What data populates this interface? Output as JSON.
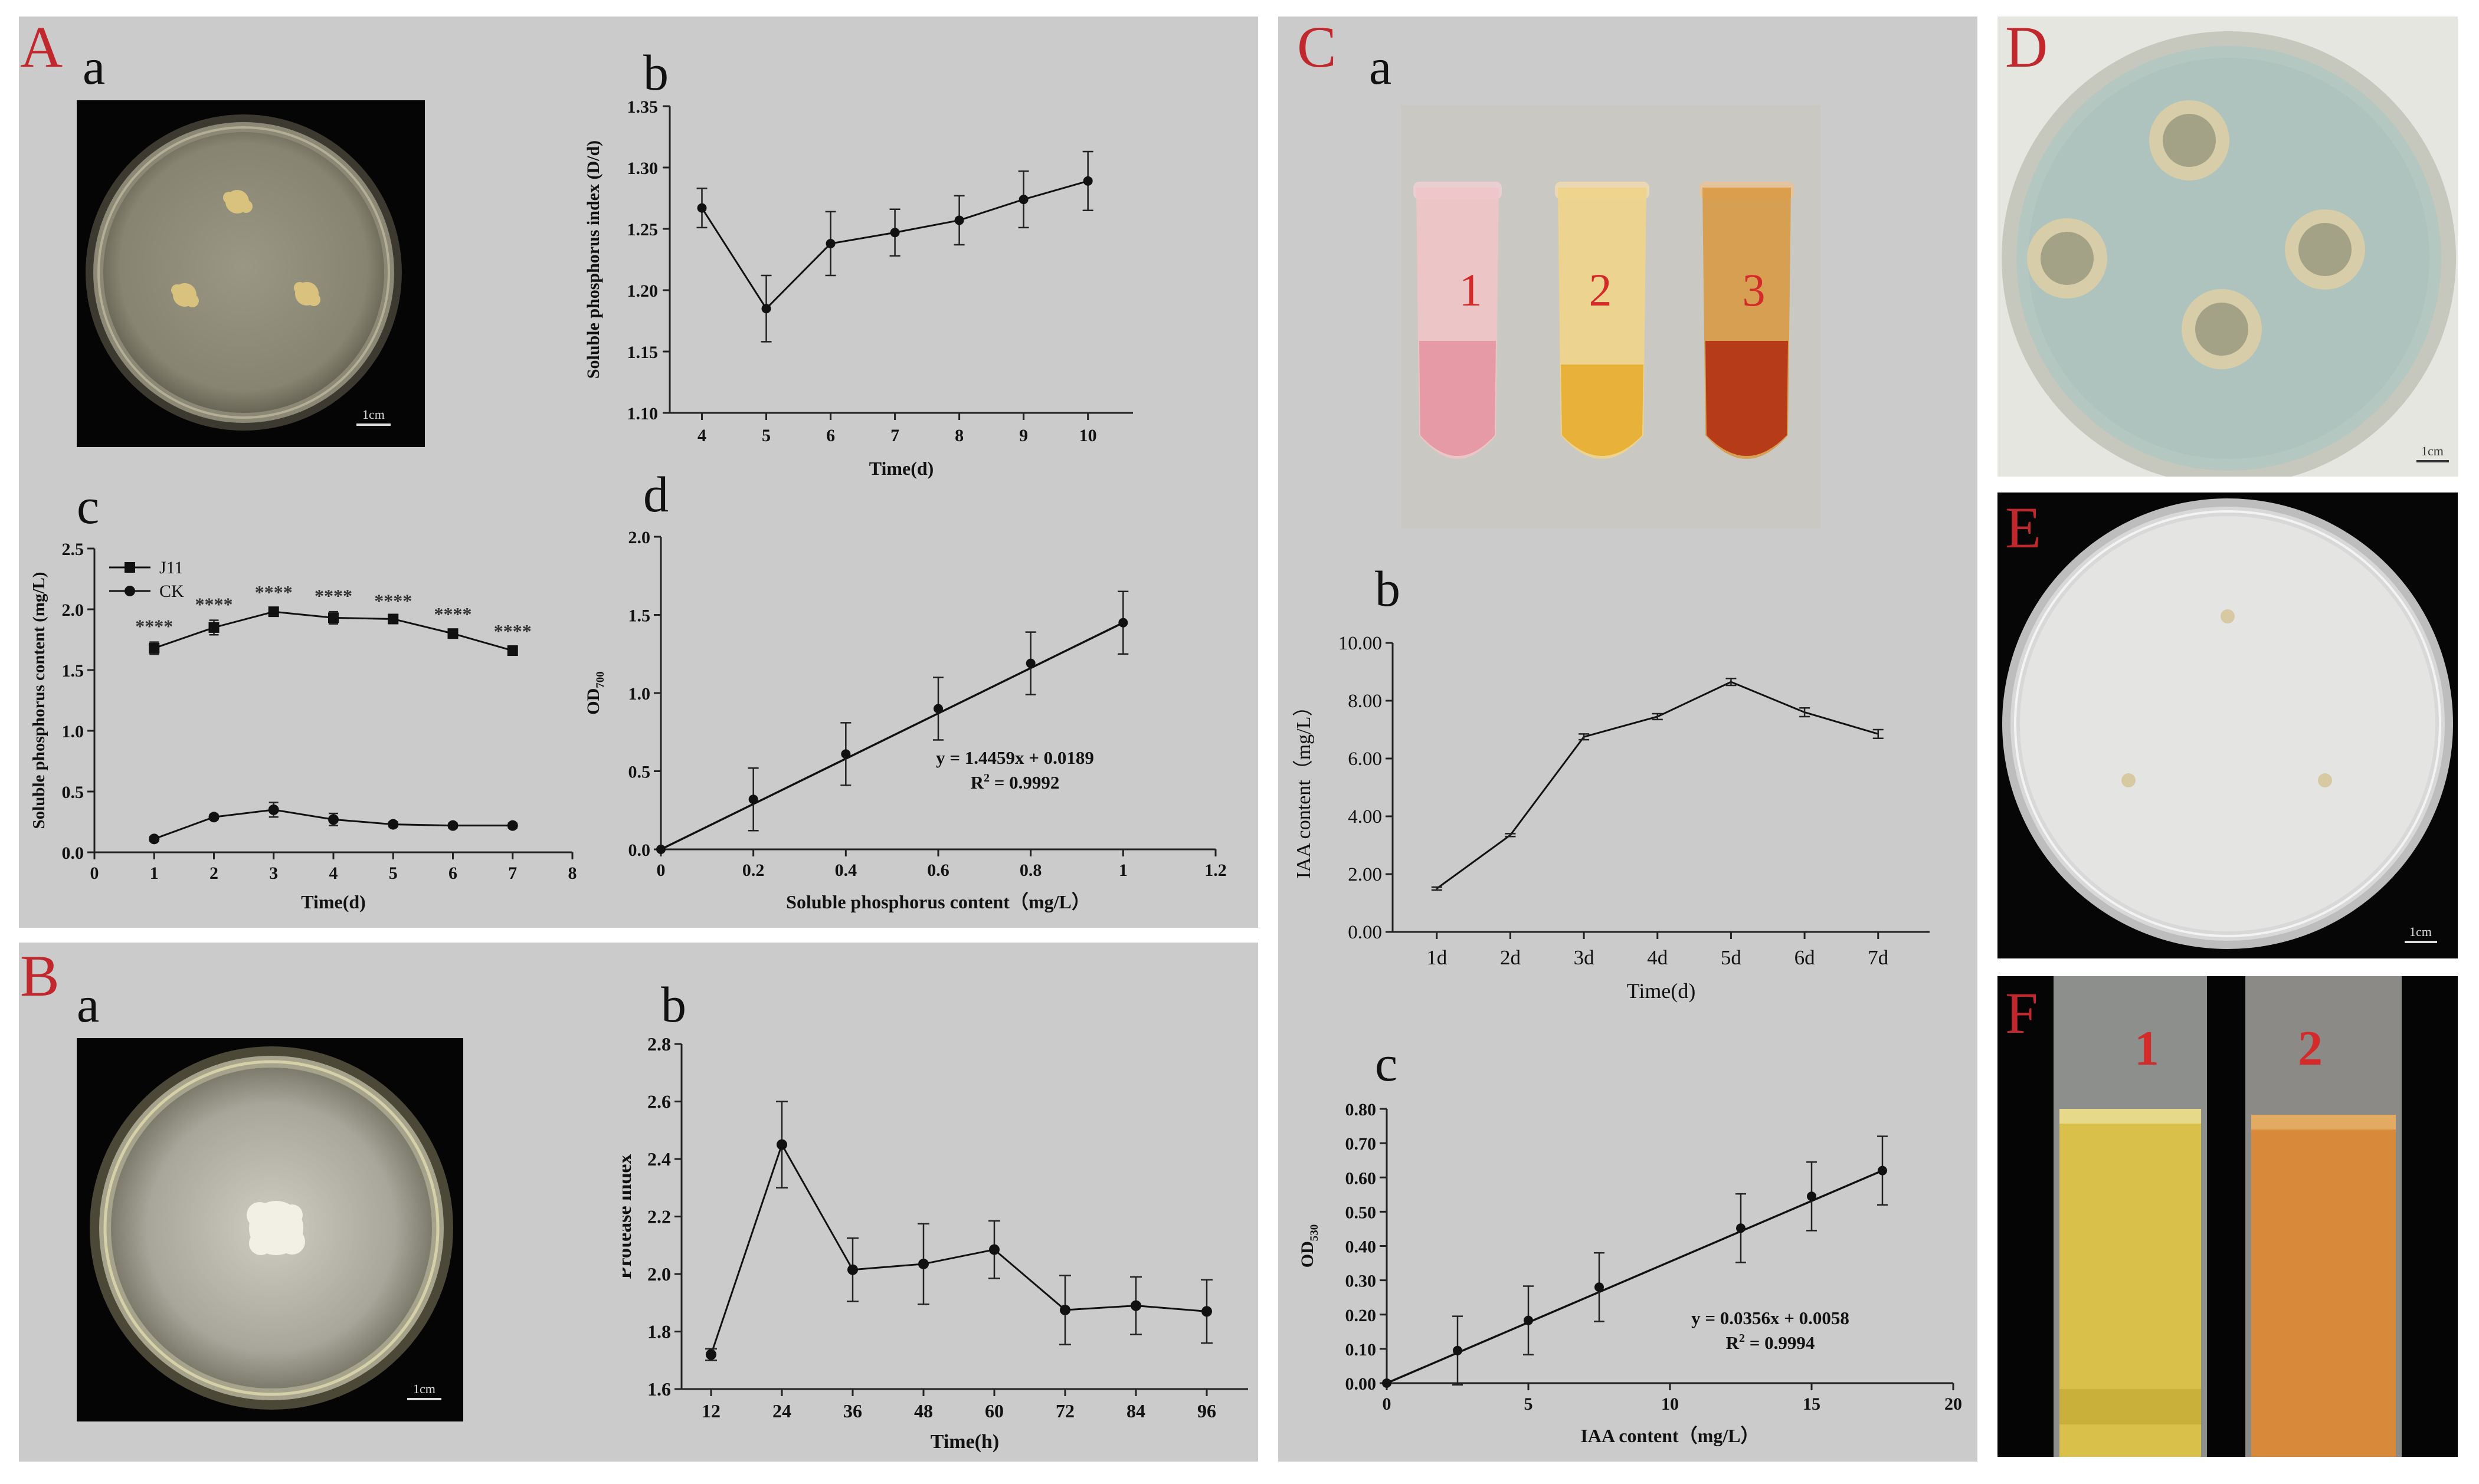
{
  "panel_labels": {
    "A": "A",
    "B": "B",
    "C": "C",
    "D": "D",
    "E": "E",
    "F": "F"
  },
  "sub_labels": {
    "Aa": "a",
    "Ab": "b",
    "Ac": "c",
    "Ad": "d",
    "Ba": "a",
    "Bb": "b",
    "Ca": "a",
    "Cb": "b",
    "Cc": "c"
  },
  "scale_bar": "1cm",
  "tube_labels": [
    "1",
    "2",
    "3"
  ],
  "tube_labels_F": [
    "1",
    "2"
  ],
  "colors": {
    "panel_bg": "#cbcbcb",
    "label_red": "#c0282d",
    "tube_label": "#d42a2a"
  },
  "chart_data": [
    {
      "id": "Ab",
      "type": "line",
      "x": [
        4,
        5,
        6,
        7,
        8,
        9,
        10
      ],
      "values": [
        1.267,
        1.185,
        1.238,
        1.247,
        1.257,
        1.274,
        1.289
      ],
      "errors": [
        0.016,
        0.027,
        0.026,
        0.019,
        0.02,
        0.023,
        0.024
      ],
      "xlim": [
        3.5,
        10.7
      ],
      "ylim": [
        1.1,
        1.35
      ],
      "xticks": [
        4,
        5,
        6,
        7,
        8,
        9,
        10
      ],
      "yticks": [
        "1.10",
        "1.15",
        "1.20",
        "1.25",
        "1.30",
        "1.35"
      ],
      "xlabel": "Time(d)",
      "ylabel": "Soluble phosphorus index (D/d)"
    },
    {
      "id": "Ac",
      "type": "line",
      "series": [
        {
          "name": "J11",
          "marker": "square",
          "x": [
            1,
            2,
            3,
            4,
            5,
            6,
            7
          ],
          "values": [
            1.68,
            1.85,
            1.98,
            1.93,
            1.92,
            1.8,
            1.66
          ],
          "errors": [
            0.05,
            0.06,
            0.03,
            0.05,
            0.02,
            0.03,
            0.03
          ]
        },
        {
          "name": "CK",
          "marker": "circle",
          "x": [
            1,
            2,
            3,
            4,
            5,
            6,
            7
          ],
          "values": [
            0.11,
            0.29,
            0.35,
            0.27,
            0.23,
            0.22,
            0.22
          ],
          "errors": [
            0.02,
            0.02,
            0.06,
            0.05,
            0.02,
            0.02,
            0.02
          ]
        }
      ],
      "annotations": [
        "****",
        "****",
        "****",
        "****",
        "****",
        "****",
        "****"
      ],
      "xlim": [
        0,
        8
      ],
      "ylim": [
        0,
        2.5
      ],
      "xticks": [
        "0",
        "1",
        "2",
        "3",
        "4",
        "5",
        "6",
        "7",
        "8"
      ],
      "yticks": [
        "0.0",
        "0.5",
        "1.0",
        "1.5",
        "2.0",
        "2.5"
      ],
      "xlabel": "Time(d)",
      "ylabel": "Soluble phosphorus content (mg/L)",
      "legend_position": "top-left"
    },
    {
      "id": "Ad",
      "type": "scatter",
      "x": [
        0,
        0.2,
        0.4,
        0.6,
        0.8,
        1.0
      ],
      "values": [
        0,
        0.32,
        0.61,
        0.9,
        1.19,
        1.45
      ],
      "errors": [
        0,
        0.2,
        0.2,
        0.2,
        0.2,
        0.2
      ],
      "xlim": [
        0,
        1.2
      ],
      "ylim": [
        0,
        2.0
      ],
      "xticks": [
        "0",
        "0.2",
        "0.4",
        "0.6",
        "0.8",
        "1",
        "1.2"
      ],
      "yticks": [
        "0.0",
        "0.5",
        "1.0",
        "1.5",
        "2.0"
      ],
      "xlabel": "Soluble phosphorus content（mg/L）",
      "ylabel_main": "OD",
      "ylabel_sub": "700",
      "equation": "y = 1.4459x + 0.0189",
      "r2_main": "R",
      "r2_sup": "2",
      "r2_rest": " = 0.9992"
    },
    {
      "id": "Bb",
      "type": "line",
      "x": [
        12,
        24,
        36,
        48,
        60,
        72,
        84,
        96
      ],
      "values": [
        1.72,
        2.45,
        2.015,
        2.035,
        2.085,
        1.875,
        1.89,
        1.87
      ],
      "errors": [
        0.02,
        0.15,
        0.11,
        0.14,
        0.1,
        0.12,
        0.1,
        0.11
      ],
      "xlim": [
        7,
        103
      ],
      "ylim": [
        1.6,
        2.8
      ],
      "xticks": [
        "12",
        "24",
        "36",
        "48",
        "60",
        "72",
        "84",
        "96"
      ],
      "yticks": [
        "1.6",
        "1.8",
        "2.0",
        "2.2",
        "2.4",
        "2.6",
        "2.8"
      ],
      "xlabel": "Time(h)",
      "ylabel": "Protease index"
    },
    {
      "id": "Cb",
      "type": "line",
      "categories": [
        "1d",
        "2d",
        "3d",
        "4d",
        "5d",
        "6d",
        "7d"
      ],
      "values": [
        1.5,
        3.35,
        6.75,
        7.45,
        8.65,
        7.6,
        6.85
      ],
      "errors": [
        0.05,
        0.05,
        0.1,
        0.1,
        0.12,
        0.15,
        0.15
      ],
      "ylim": [
        0,
        10
      ],
      "yticks": [
        "0.00",
        "2.00",
        "4.00",
        "6.00",
        "8.00",
        "10.00"
      ],
      "xlabel": "Time(d)",
      "ylabel": "IAA content（mg/L）"
    },
    {
      "id": "Cc",
      "type": "scatter",
      "x": [
        0,
        2.5,
        5,
        7.5,
        12.5,
        15,
        17.5
      ],
      "values": [
        0,
        0.095,
        0.183,
        0.28,
        0.452,
        0.545,
        0.62
      ],
      "errors": [
        0,
        0.1,
        0.1,
        0.1,
        0.1,
        0.1,
        0.1
      ],
      "xlim": [
        0,
        20
      ],
      "ylim": [
        0,
        0.8
      ],
      "xticks": [
        "0",
        "5",
        "10",
        "15",
        "20"
      ],
      "yticks": [
        "0.00",
        "0.10",
        "0.20",
        "0.30",
        "0.40",
        "0.50",
        "0.60",
        "0.70",
        "0.80"
      ],
      "xlabel": "IAA content（mg/L）",
      "ylabel_main": "OD",
      "ylabel_sub": "530",
      "equation": "y = 0.0356x + 0.0058",
      "r2_main": "R",
      "r2_sup": "2",
      "r2_rest": " = 0.9994"
    }
  ]
}
